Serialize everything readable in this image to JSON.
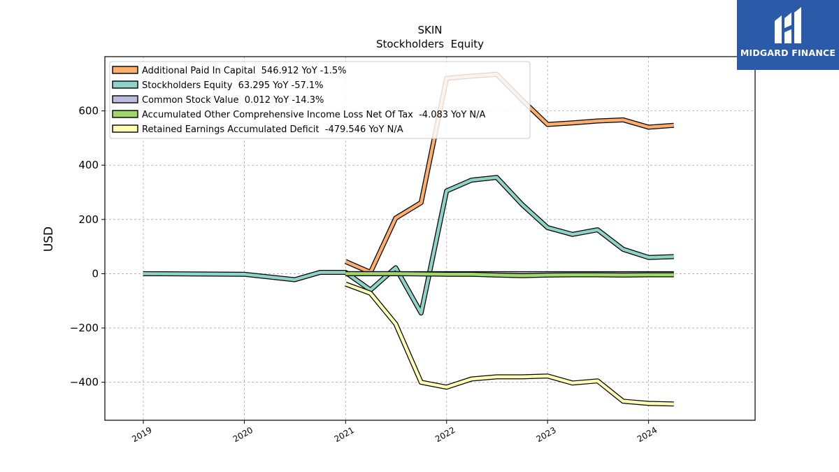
{
  "chart_data": {
    "type": "line",
    "title": "SKIN",
    "subtitle": "Stockholders  Equity",
    "ylabel": "USD",
    "xlim": [
      "2018-08-15",
      "2025-01-20"
    ],
    "ylim": [
      -540,
      800
    ],
    "x_ticks": [
      "2019",
      "2020",
      "2021",
      "2022",
      "2023",
      "2024"
    ],
    "y_ticks": [
      -400,
      -200,
      0,
      200,
      400,
      600
    ],
    "y_tick_labels": [
      "−400",
      "−200",
      "0",
      "200",
      "400",
      "600"
    ],
    "grid": true,
    "legend_position": "top-left",
    "series": [
      {
        "name": "Additional Paid In Capital  546.912 YoY -1.5%",
        "color": "#fdae6b",
        "x": [
          "2021-01-01",
          "2021-04-01",
          "2021-07-01",
          "2021-10-01",
          "2022-01-01",
          "2022-04-01",
          "2022-07-01",
          "2022-10-01",
          "2023-01-01",
          "2023-04-01",
          "2023-07-01",
          "2023-10-01",
          "2024-01-01",
          "2024-04-01"
        ],
        "y": [
          45,
          5,
          205,
          262,
          720,
          728,
          735,
          640,
          550,
          556,
          563,
          567,
          540,
          547
        ]
      },
      {
        "name": "Stockholders Equity  63.295 YoY -57.1%",
        "color": "#8dd3c7",
        "x": [
          "2018-12-31",
          "2019-12-31",
          "2020-07-01",
          "2020-10-01",
          "2021-01-01",
          "2021-04-01",
          "2021-07-01",
          "2021-10-01",
          "2022-01-01",
          "2022-04-01",
          "2022-07-01",
          "2022-10-01",
          "2023-01-01",
          "2023-04-01",
          "2023-07-01",
          "2023-10-01",
          "2024-01-01",
          "2024-04-01"
        ],
        "y": [
          0,
          -2,
          -22,
          5,
          5,
          -60,
          22,
          -145,
          305,
          345,
          355,
          255,
          170,
          145,
          162,
          90,
          60,
          63
        ]
      },
      {
        "name": "Common Stock Value  0.012 YoY -14.3%",
        "color": "#bcbddc",
        "x": [
          "2021-01-01",
          "2021-07-01",
          "2022-01-01",
          "2022-07-01",
          "2023-01-01",
          "2023-07-01",
          "2024-01-01",
          "2024-04-01"
        ],
        "y": [
          0,
          0,
          0,
          0,
          0,
          0,
          0,
          0
        ]
      },
      {
        "name": "Accumulated Other Comprehensive Income Loss Net Of Tax  -4.083 YoY N/A",
        "color": "#a1d76a",
        "x": [
          "2021-01-01",
          "2021-07-01",
          "2022-01-01",
          "2022-04-01",
          "2022-07-01",
          "2022-10-01",
          "2023-01-01",
          "2023-04-01",
          "2023-07-01",
          "2023-10-01",
          "2024-01-01",
          "2024-04-01"
        ],
        "y": [
          0,
          0,
          -2,
          -2,
          -5,
          -7,
          -5,
          -4,
          -4,
          -5,
          -4,
          -4
        ]
      },
      {
        "name": "Retained Earnings Accumulated Deficit  -479.546 YoY N/A",
        "color": "#ffffb3",
        "x": [
          "2021-01-01",
          "2021-04-01",
          "2021-07-01",
          "2021-10-01",
          "2022-01-01",
          "2022-04-01",
          "2022-07-01",
          "2022-10-01",
          "2023-01-01",
          "2023-04-01",
          "2023-07-01",
          "2023-10-01",
          "2024-01-01",
          "2024-04-01"
        ],
        "y": [
          -38,
          -72,
          -185,
          -400,
          -418,
          -388,
          -380,
          -380,
          -377,
          -403,
          -395,
          -470,
          -478,
          -480
        ]
      }
    ]
  },
  "logo": {
    "text": "MIDGARD FINANCE",
    "background": "#2a5aa8"
  }
}
